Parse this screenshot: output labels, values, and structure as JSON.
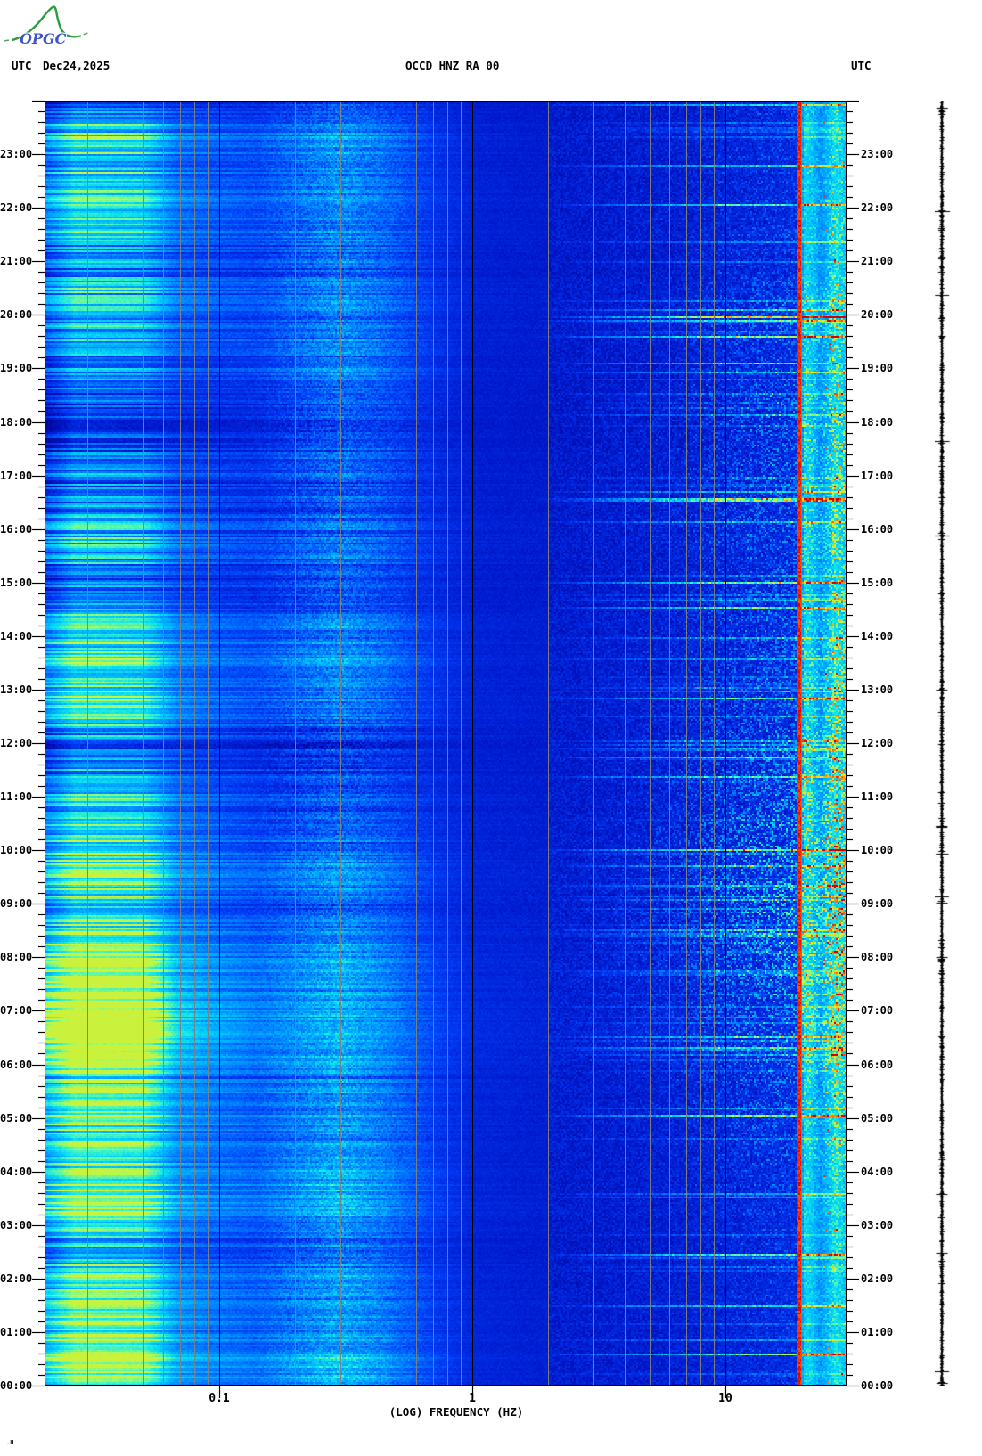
{
  "logo": {
    "org": "OPGC",
    "curve_color": "#2E9B3E",
    "text_color": "#3C55C8"
  },
  "header": {
    "left_utc": "UTC",
    "date": "Dec24,2025",
    "title": "OCCD HNZ RA 00",
    "right_utc": "UTC"
  },
  "footer": {
    "corner_glyph": ".H"
  },
  "chart_data": {
    "type": "heatmap",
    "subtype": "seismic-spectrogram",
    "title": "OCCD HNZ RA 00",
    "xlabel": "(LOG) FREQUENCY (HZ)",
    "x_scale": "log10",
    "x_range_hz": [
      0.02,
      29.6
    ],
    "x_ticks": [
      {
        "label": "0.1",
        "hz": 0.1
      },
      {
        "label": "1",
        "hz": 1
      },
      {
        "label": "10",
        "hz": 10
      }
    ],
    "y_axis_units": "UTC time, 00:00 at bottom to 24:00 at top",
    "time_labels": [
      "00:00",
      "01:00",
      "02:00",
      "03:00",
      "04:00",
      "05:00",
      "06:00",
      "07:00",
      "08:00",
      "09:00",
      "10:00",
      "11:00",
      "12:00",
      "13:00",
      "14:00",
      "15:00",
      "16:00",
      "17:00",
      "18:00",
      "19:00",
      "20:00",
      "21:00",
      "22:00",
      "23:00"
    ],
    "minor_tick_minutes": 12,
    "legend_position": "none",
    "grid": "vertical log-decade gridlines, gray minors, black at 0.1 / 1 / 10 Hz",
    "features": {
      "primary_microseism_band_hz": [
        0.028,
        0.055
      ],
      "secondary_microseism_band_hz": [
        0.15,
        0.45
      ],
      "quiet_band_hz": [
        0.6,
        8
      ],
      "high_freq_activity_band_hz": [
        8,
        30
      ],
      "monochromatic_noise_line_hz": 20,
      "noise_line_color": "#ff1400",
      "high_freq_activity_peak_utc": "05:00-12:00",
      "secondary_activity_utc": "14:00-19:00",
      "right_margin_trace": "compressed vertical seismogram, black"
    },
    "colormap": {
      "name": "jet",
      "stops": [
        [
          0.0,
          [
            0,
            0,
            110
          ]
        ],
        [
          0.12,
          [
            0,
            8,
            150
          ]
        ],
        [
          0.2,
          [
            0,
            22,
            200
          ]
        ],
        [
          0.3,
          [
            0,
            60,
            245
          ]
        ],
        [
          0.4,
          [
            0,
            120,
            255
          ]
        ],
        [
          0.5,
          [
            0,
            180,
            255
          ]
        ],
        [
          0.58,
          [
            10,
            225,
            240
          ]
        ],
        [
          0.66,
          [
            80,
            245,
            180
          ]
        ],
        [
          0.74,
          [
            170,
            250,
            90
          ]
        ],
        [
          0.8,
          [
            235,
            235,
            30
          ]
        ],
        [
          0.88,
          [
            255,
            150,
            0
          ]
        ],
        [
          0.95,
          [
            255,
            60,
            0
          ]
        ],
        [
          1.0,
          [
            215,
            0,
            0
          ]
        ]
      ]
    },
    "render": {
      "seed": 20251224,
      "profile_anchors": [
        [
          -1.7,
          0.4,
          0.3,
          0.0,
          0.0
        ],
        [
          -1.57,
          0.6,
          0.36,
          0.0,
          0.0
        ],
        [
          -1.3,
          0.57,
          0.36,
          0.0,
          0.0
        ],
        [
          -1.17,
          0.4,
          0.18,
          0.0,
          0.0
        ],
        [
          -1.02,
          0.355,
          0.14,
          0.02,
          0.0
        ],
        [
          -0.85,
          0.32,
          0.11,
          0.06,
          0.0
        ],
        [
          -0.7,
          0.355,
          0.13,
          0.14,
          0.0
        ],
        [
          -0.52,
          0.415,
          0.15,
          0.18,
          0.0
        ],
        [
          -0.36,
          0.365,
          0.11,
          0.12,
          0.0
        ],
        [
          -0.15,
          0.275,
          0.05,
          0.04,
          0.0
        ],
        [
          0.0,
          0.232,
          0.025,
          0.0,
          0.01
        ],
        [
          0.4,
          0.208,
          0.012,
          0.0,
          0.03
        ],
        [
          0.8,
          0.212,
          0.012,
          0.0,
          0.12
        ],
        [
          1.0,
          0.222,
          0.012,
          0.0,
          0.24
        ],
        [
          1.2,
          0.232,
          0.01,
          0.0,
          0.33
        ],
        [
          1.29,
          0.245,
          0.01,
          0.0,
          0.33
        ],
        [
          1.315,
          0.55,
          0.02,
          0.0,
          0.3
        ],
        [
          1.35,
          0.5,
          0.02,
          0.0,
          0.26
        ],
        [
          1.375,
          0.43,
          0.02,
          0.0,
          0.22
        ],
        [
          1.405,
          0.49,
          0.02,
          0.0,
          0.32
        ],
        [
          1.435,
          0.56,
          0.02,
          0.0,
          0.46
        ],
        [
          1.46,
          0.53,
          0.02,
          0.0,
          0.42
        ],
        [
          1.478,
          0.49,
          0.02,
          0.0,
          0.34
        ]
      ],
      "hf_envelope": {
        "base": 0.16,
        "peak1_hour": 9.0,
        "peak1_amp": 0.6,
        "peak1_sigma": 3.6,
        "peak2_hour": 17.2,
        "peak2_amp": 0.28,
        "peak2_sigma": 4.2
      }
    }
  }
}
